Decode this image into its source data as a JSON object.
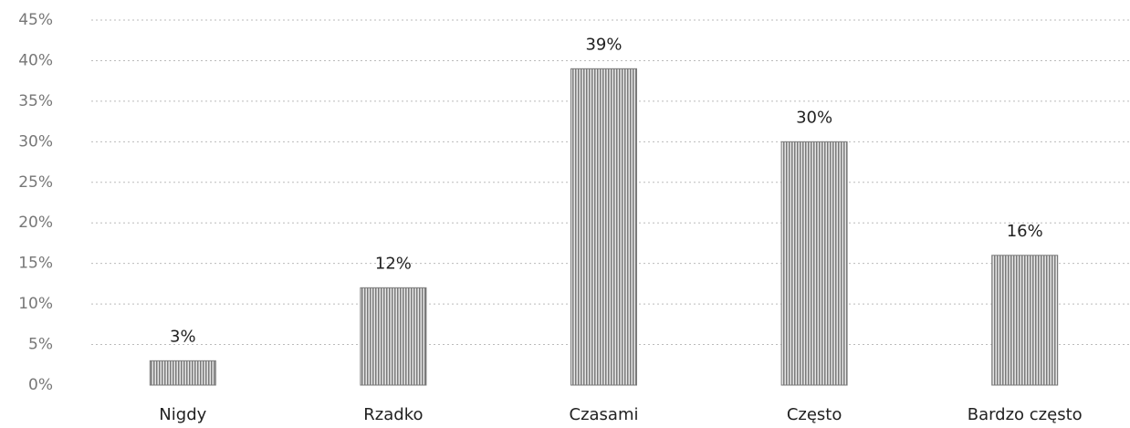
{
  "chart_data": {
    "type": "bar",
    "categories": [
      "Nigdy",
      "Rzadko",
      "Czasami",
      "Często",
      "Bardzo często"
    ],
    "values": [
      3,
      12,
      39,
      30,
      16
    ],
    "value_labels": [
      "3%",
      "12%",
      "39%",
      "30%",
      "16%"
    ],
    "color": "#7a7a7a",
    "ylim": [
      0,
      45
    ],
    "yticks": [
      {
        "value": 0,
        "label": "0%"
      },
      {
        "value": 5,
        "label": "5%"
      },
      {
        "value": 10,
        "label": "10%"
      },
      {
        "value": 15,
        "label": "15%"
      },
      {
        "value": 20,
        "label": "20%"
      },
      {
        "value": 25,
        "label": "25%"
      },
      {
        "value": 30,
        "label": "30%"
      },
      {
        "value": 35,
        "label": "35%"
      },
      {
        "value": 40,
        "label": "40%"
      },
      {
        "value": 45,
        "label": "45%"
      }
    ],
    "grid": true
  }
}
